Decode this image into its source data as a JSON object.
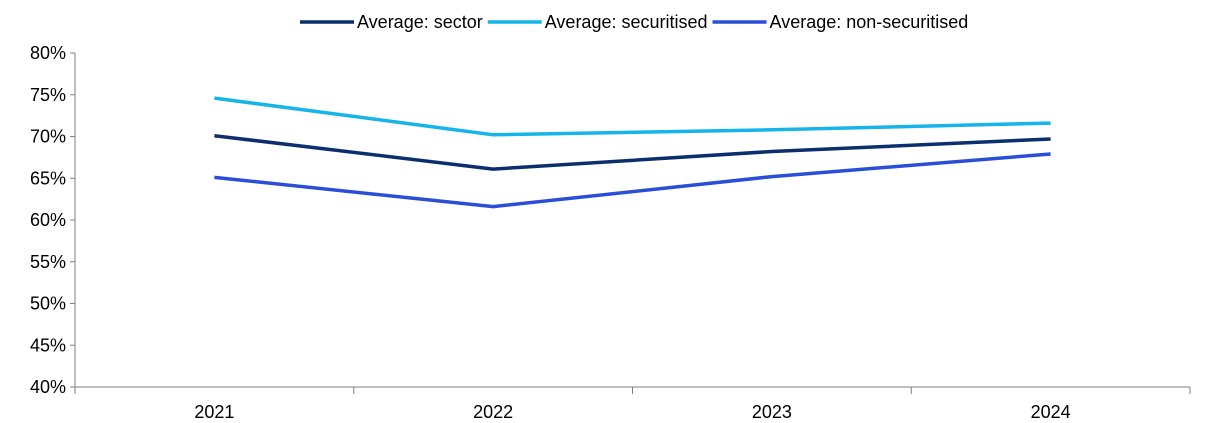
{
  "chart_data": {
    "type": "line",
    "title": "",
    "xlabel": "",
    "ylabel": "",
    "categories": [
      "2021",
      "2022",
      "2023",
      "2024"
    ],
    "ylim": [
      0.4,
      0.8
    ],
    "y_ticks": [
      0.4,
      0.45,
      0.5,
      0.55,
      0.6,
      0.65,
      0.7,
      0.75,
      0.8
    ],
    "y_tick_labels": [
      "40%",
      "45%",
      "50%",
      "55%",
      "60%",
      "65%",
      "70%",
      "75%",
      "80%"
    ],
    "y_format": "percent",
    "grid": false,
    "legend_position": "top",
    "series": [
      {
        "name": "Average: sector",
        "color": "#0b2e6f",
        "values": [
          0.701,
          0.661,
          0.682,
          0.697
        ]
      },
      {
        "name": "Average: securitised",
        "color": "#16b4e8",
        "values": [
          0.746,
          0.702,
          0.708,
          0.716
        ]
      },
      {
        "name": "Average: non-securitised",
        "color": "#2a4fd6",
        "values": [
          0.651,
          0.616,
          0.652,
          0.679
        ]
      }
    ]
  }
}
